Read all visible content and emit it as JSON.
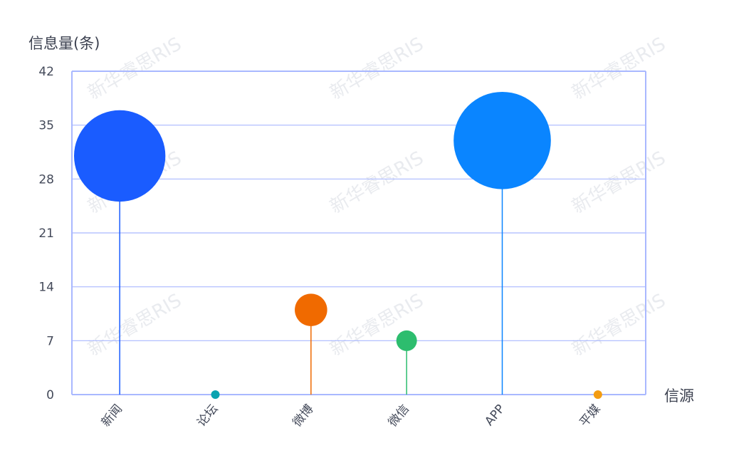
{
  "watermark": "新华睿思RIS",
  "chart_data": {
    "type": "scatter",
    "subtype": "lollipop-bubble",
    "ylabel": "信息量(条)",
    "xlabel": "信源",
    "categories": [
      "新闻",
      "论坛",
      "微博",
      "微信",
      "APP",
      "平媒"
    ],
    "values": [
      31,
      0,
      11,
      7,
      33,
      0
    ],
    "colors": [
      "#1a5cff",
      "#0aa3b0",
      "#f06a00",
      "#2dbd6e",
      "#0a85ff",
      "#f39c12"
    ],
    "ylim": [
      0,
      42
    ],
    "yticks": [
      0,
      7,
      14,
      21,
      28,
      35,
      42
    ],
    "grid": true,
    "axis_color": "#a9b8ff"
  }
}
